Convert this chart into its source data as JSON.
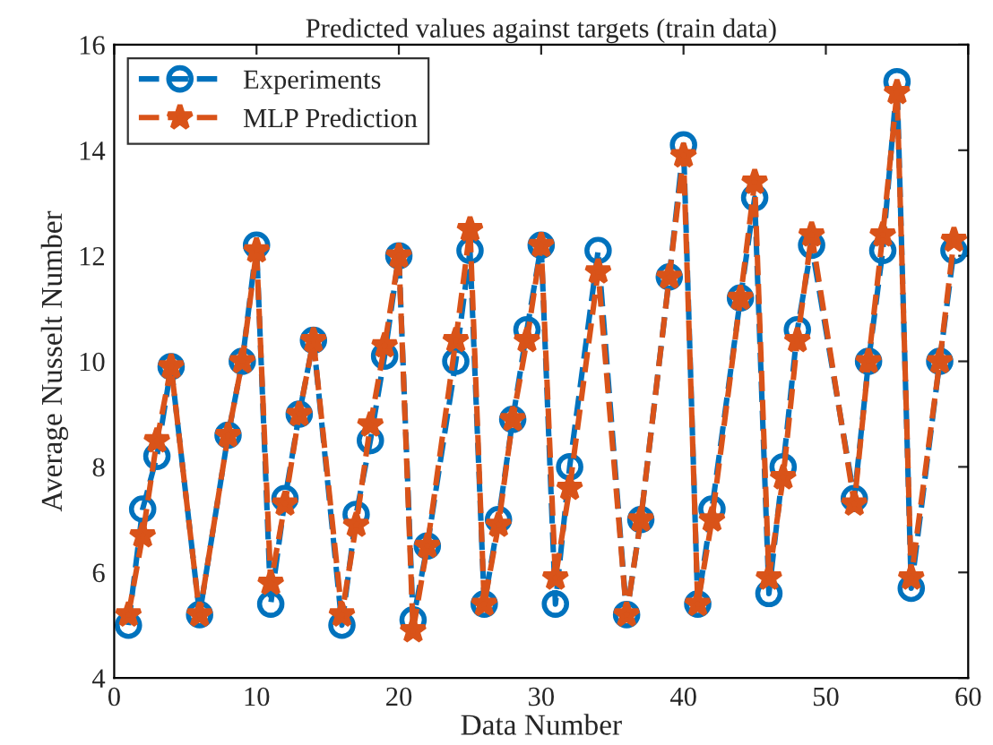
{
  "chart_data": {
    "type": "line",
    "title": "Predicted values against targets (train data)",
    "xlabel": "Data Number",
    "ylabel": "Average Nusselt Number",
    "x": [
      1,
      2,
      3,
      4,
      6,
      8,
      9,
      10,
      11,
      12,
      13,
      14,
      16,
      17,
      18,
      19,
      20,
      21,
      22,
      24,
      25,
      26,
      27,
      28,
      29,
      30,
      31,
      32,
      34,
      36,
      37,
      39,
      40,
      41,
      42,
      44,
      45,
      46,
      47,
      48,
      49,
      52,
      53,
      54,
      55,
      56,
      58,
      59
    ],
    "series": [
      {
        "name": "Experiments",
        "color": "#0072bd",
        "marker": "circle",
        "values": [
          5.0,
          7.2,
          8.2,
          9.9,
          5.2,
          8.6,
          10.0,
          12.2,
          5.4,
          7.4,
          9.0,
          10.4,
          5.0,
          7.1,
          8.5,
          10.1,
          12.0,
          5.1,
          6.5,
          10.0,
          12.1,
          5.4,
          7.0,
          8.9,
          10.6,
          12.2,
          5.4,
          8.0,
          12.1,
          5.2,
          7.0,
          11.6,
          14.1,
          5.4,
          7.2,
          11.2,
          13.1,
          5.6,
          8.0,
          10.6,
          12.2,
          7.4,
          10.0,
          12.1,
          15.3,
          5.7,
          10.0,
          12.1
        ]
      },
      {
        "name": "MLP Prediction",
        "color": "#d95319",
        "marker": "star",
        "values": [
          5.2,
          6.7,
          8.5,
          9.9,
          5.2,
          8.6,
          10.0,
          12.1,
          5.8,
          7.3,
          9.0,
          10.4,
          5.2,
          6.9,
          8.8,
          10.3,
          12.0,
          4.9,
          6.5,
          10.4,
          12.5,
          5.4,
          6.9,
          8.9,
          10.4,
          12.2,
          5.9,
          7.6,
          11.7,
          5.2,
          7.0,
          11.6,
          13.9,
          5.4,
          7.0,
          11.2,
          13.4,
          5.9,
          7.8,
          10.4,
          12.4,
          7.3,
          10.0,
          12.4,
          15.1,
          5.9,
          10.0,
          12.3
        ]
      }
    ],
    "xlim": [
      0,
      60
    ],
    "xticks": [
      0,
      10,
      20,
      30,
      40,
      50,
      60
    ],
    "ylim": [
      4,
      16
    ],
    "yticks": [
      4,
      6,
      8,
      10,
      12,
      14,
      16
    ],
    "line_style": "dashed",
    "grid": false,
    "legend": "top left"
  }
}
